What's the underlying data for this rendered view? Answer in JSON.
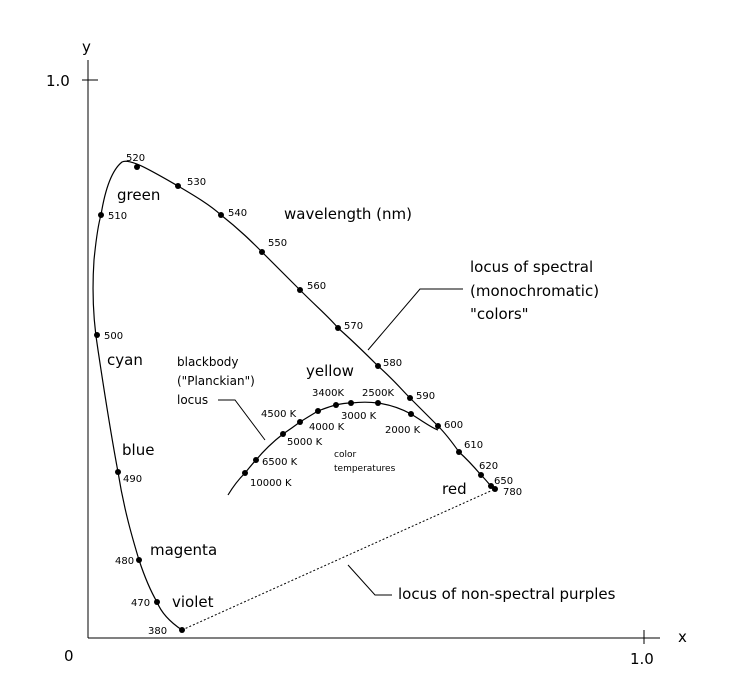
{
  "axes": {
    "y_label": "y",
    "x_label": "x",
    "origin": "0",
    "y_tick": "1.0",
    "x_tick": "1.0"
  },
  "spectral_points": [
    {
      "label": "520"
    },
    {
      "label": "530"
    },
    {
      "label": "540"
    },
    {
      "label": "550"
    },
    {
      "label": "560"
    },
    {
      "label": "570"
    },
    {
      "label": "580"
    },
    {
      "label": "590"
    },
    {
      "label": "600"
    },
    {
      "label": "610"
    },
    {
      "label": "620"
    },
    {
      "label": "650"
    },
    {
      "label": "780"
    },
    {
      "label": "510"
    },
    {
      "label": "500"
    },
    {
      "label": "490"
    },
    {
      "label": "480"
    },
    {
      "label": "470"
    },
    {
      "label": "380"
    }
  ],
  "color_names": {
    "green": "green",
    "cyan": "cyan",
    "blue": "blue",
    "magenta": "magenta",
    "violet": "violet",
    "yellow": "yellow",
    "red": "red"
  },
  "annotations": {
    "wavelength": "wavelength (nm)",
    "spectral_locus_line1": "locus of spectral",
    "spectral_locus_line2": "(monochromatic)",
    "spectral_locus_line3": "\"colors\"",
    "blackbody_line1": "blackbody",
    "blackbody_line2": "(\"Planckian\")",
    "blackbody_line3": "locus",
    "color_temps_line1": "color",
    "color_temps_line2": "temperatures",
    "purples": "locus of non-spectral purples"
  },
  "temperatures": [
    {
      "label": "3400K"
    },
    {
      "label": "2500K"
    },
    {
      "label": "4500 K"
    },
    {
      "label": "3000 K"
    },
    {
      "label": "4000 K"
    },
    {
      "label": "2000 K"
    },
    {
      "label": "5000 K"
    },
    {
      "label": "6500 K"
    },
    {
      "label": "10000 K"
    }
  ]
}
